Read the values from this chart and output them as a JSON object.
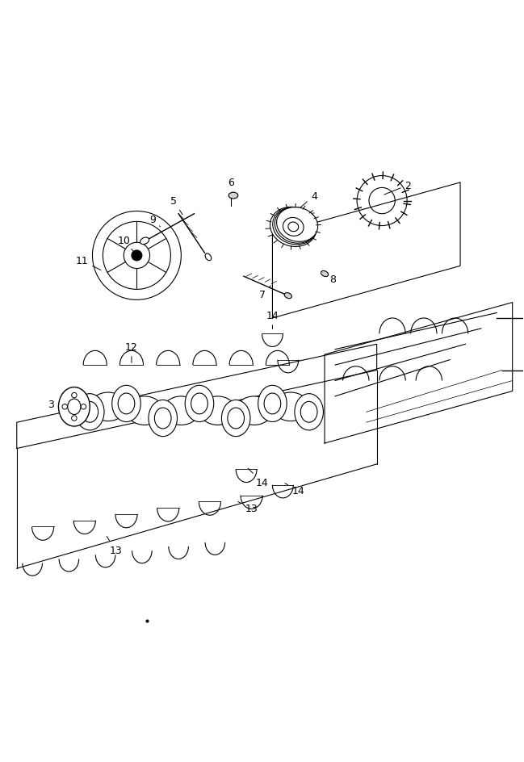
{
  "title": "",
  "bg_color": "#ffffff",
  "line_color": "#000000",
  "fig_width": 6.49,
  "fig_height": 9.45
}
